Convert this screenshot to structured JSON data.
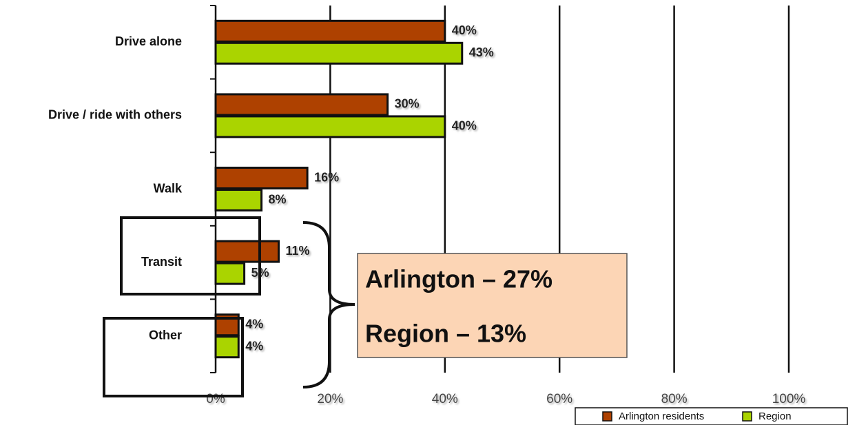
{
  "chart_data": {
    "type": "hbar",
    "categories": [
      "Drive alone",
      "Drive / ride with others",
      "Walk",
      "Transit",
      "Other"
    ],
    "series": [
      {
        "name": "Arlington residents",
        "color": "#ae4100",
        "values": [
          40,
          30,
          16,
          11,
          4
        ],
        "value_labels": [
          "40%",
          "30%",
          "16%",
          "11%",
          "4%"
        ]
      },
      {
        "name": "Region",
        "color": "#aad400",
        "values": [
          43,
          40,
          8,
          5,
          4
        ],
        "value_labels": [
          "43%",
          "40%",
          "8%",
          "5%",
          "4%"
        ]
      }
    ],
    "xlim": [
      0,
      100
    ],
    "xticks": [
      {
        "value": 0,
        "label": "0%"
      },
      {
        "value": 20,
        "label": "20%"
      },
      {
        "value": 40,
        "label": "40%"
      },
      {
        "value": 60,
        "label": "60%"
      },
      {
        "value": 80,
        "label": "80%"
      },
      {
        "value": 100,
        "label": "100%"
      }
    ],
    "grid": true,
    "annotations": [
      "Arlington – 27%",
      "Region – 13%"
    ],
    "legend": "bottom-right"
  }
}
